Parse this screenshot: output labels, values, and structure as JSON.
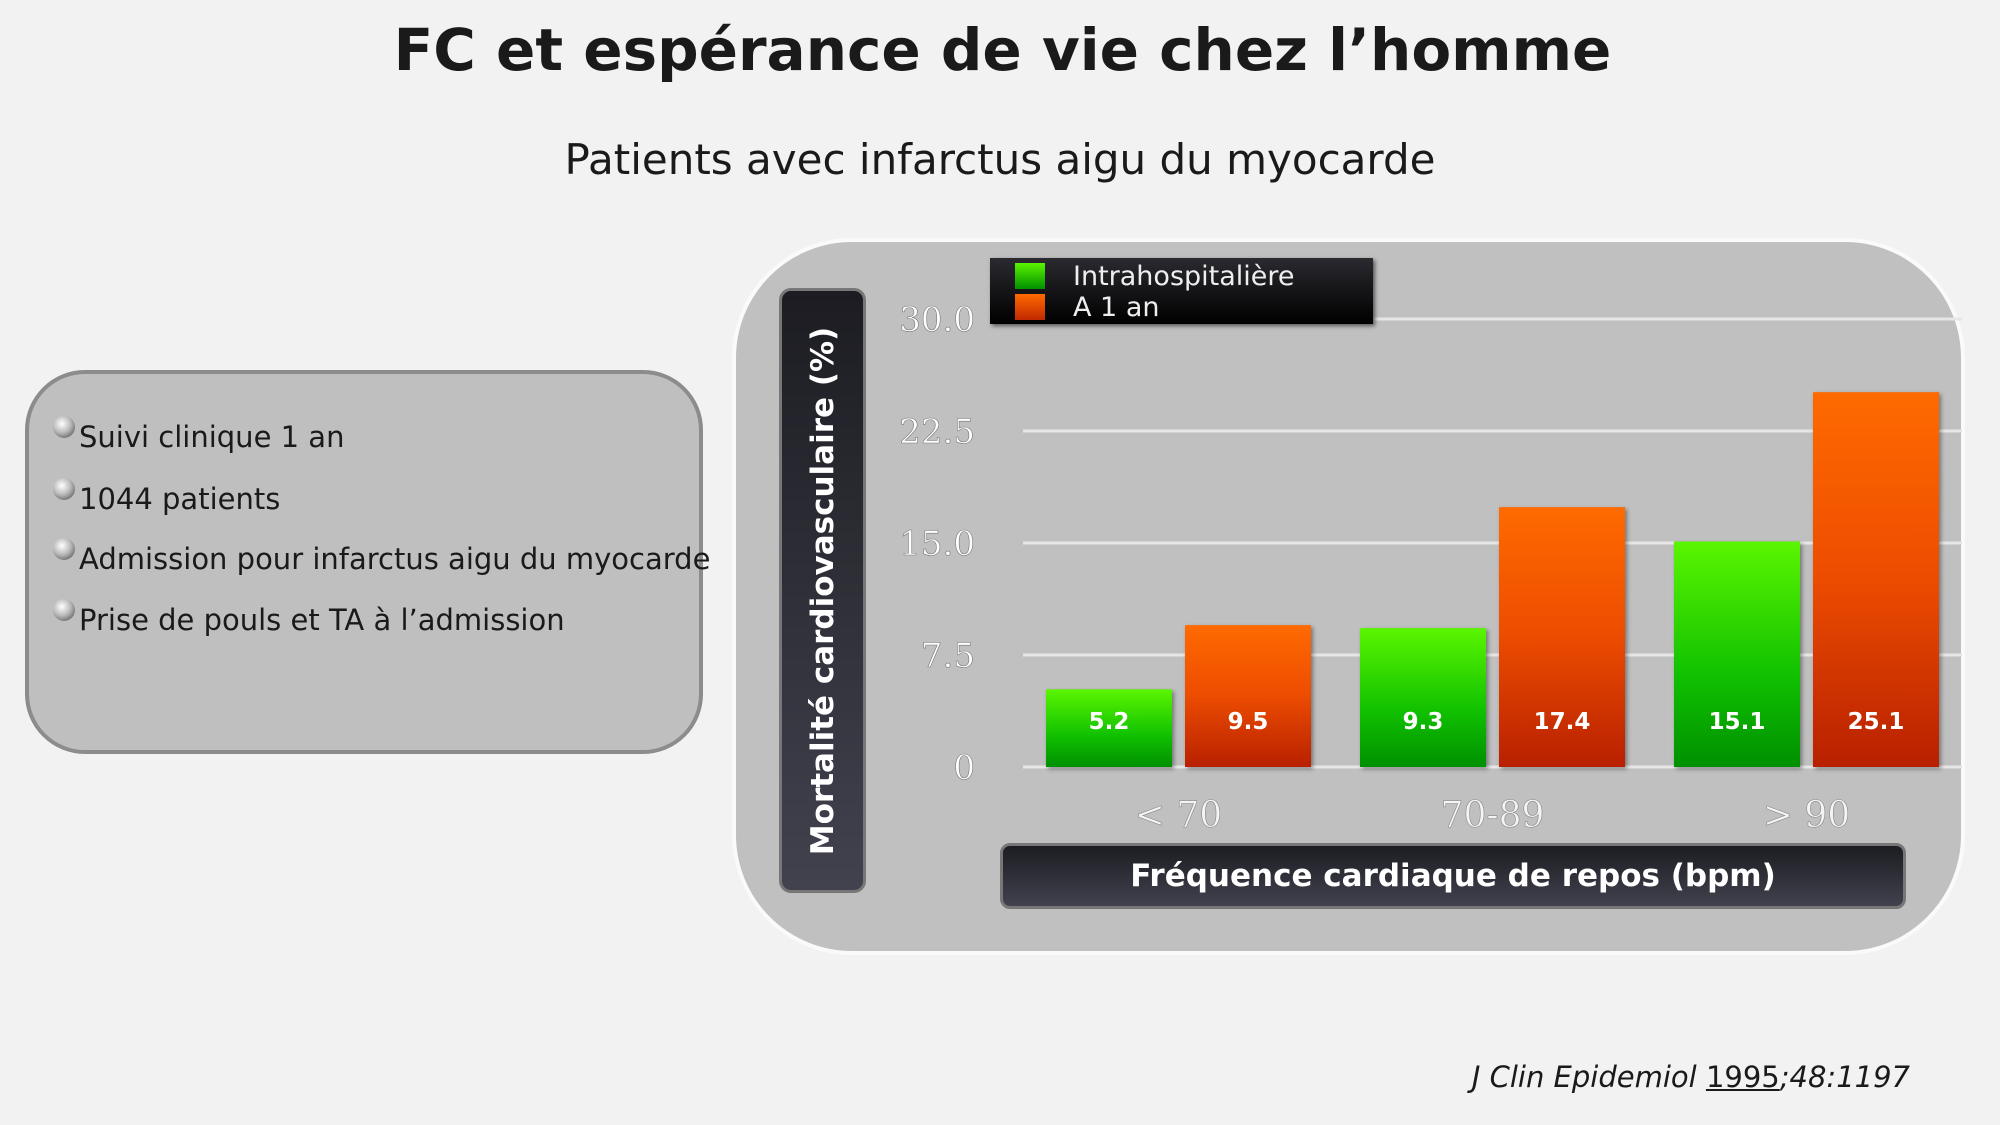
{
  "title": "FC et espérance de vie chez l’homme",
  "subtitle": "Patients avec infarctus aigu du myocarde",
  "bullets": [
    "Suivi clinique 1 an",
    "1044 patients",
    "Admission pour infarctus aigu du myocarde",
    "Prise de pouls et TA à l’admission"
  ],
  "citation": {
    "journal": "J Clin Epidemiol",
    "year": "1995",
    "ref": ";48:1197"
  },
  "chart_data": {
    "type": "bar",
    "categories": [
      "< 70",
      "70-89",
      "> 90"
    ],
    "series": [
      {
        "name": "Intrahospitalière",
        "values": [
          5.2,
          9.3,
          15.1
        ],
        "color": "#22c800"
      },
      {
        "name": "A 1 an",
        "values": [
          9.5,
          17.4,
          25.1
        ],
        "color": "#ee4a00"
      }
    ],
    "xlabel": "Fréquence cardiaque de repos (bpm)",
    "ylabel": "Mortalité cardiovasculaire (%)",
    "yticks": [
      "0",
      "7.5",
      "15.0",
      "22.5",
      "30.0"
    ],
    "ylim": [
      0,
      30
    ],
    "grid": true,
    "legend": "top-left"
  }
}
